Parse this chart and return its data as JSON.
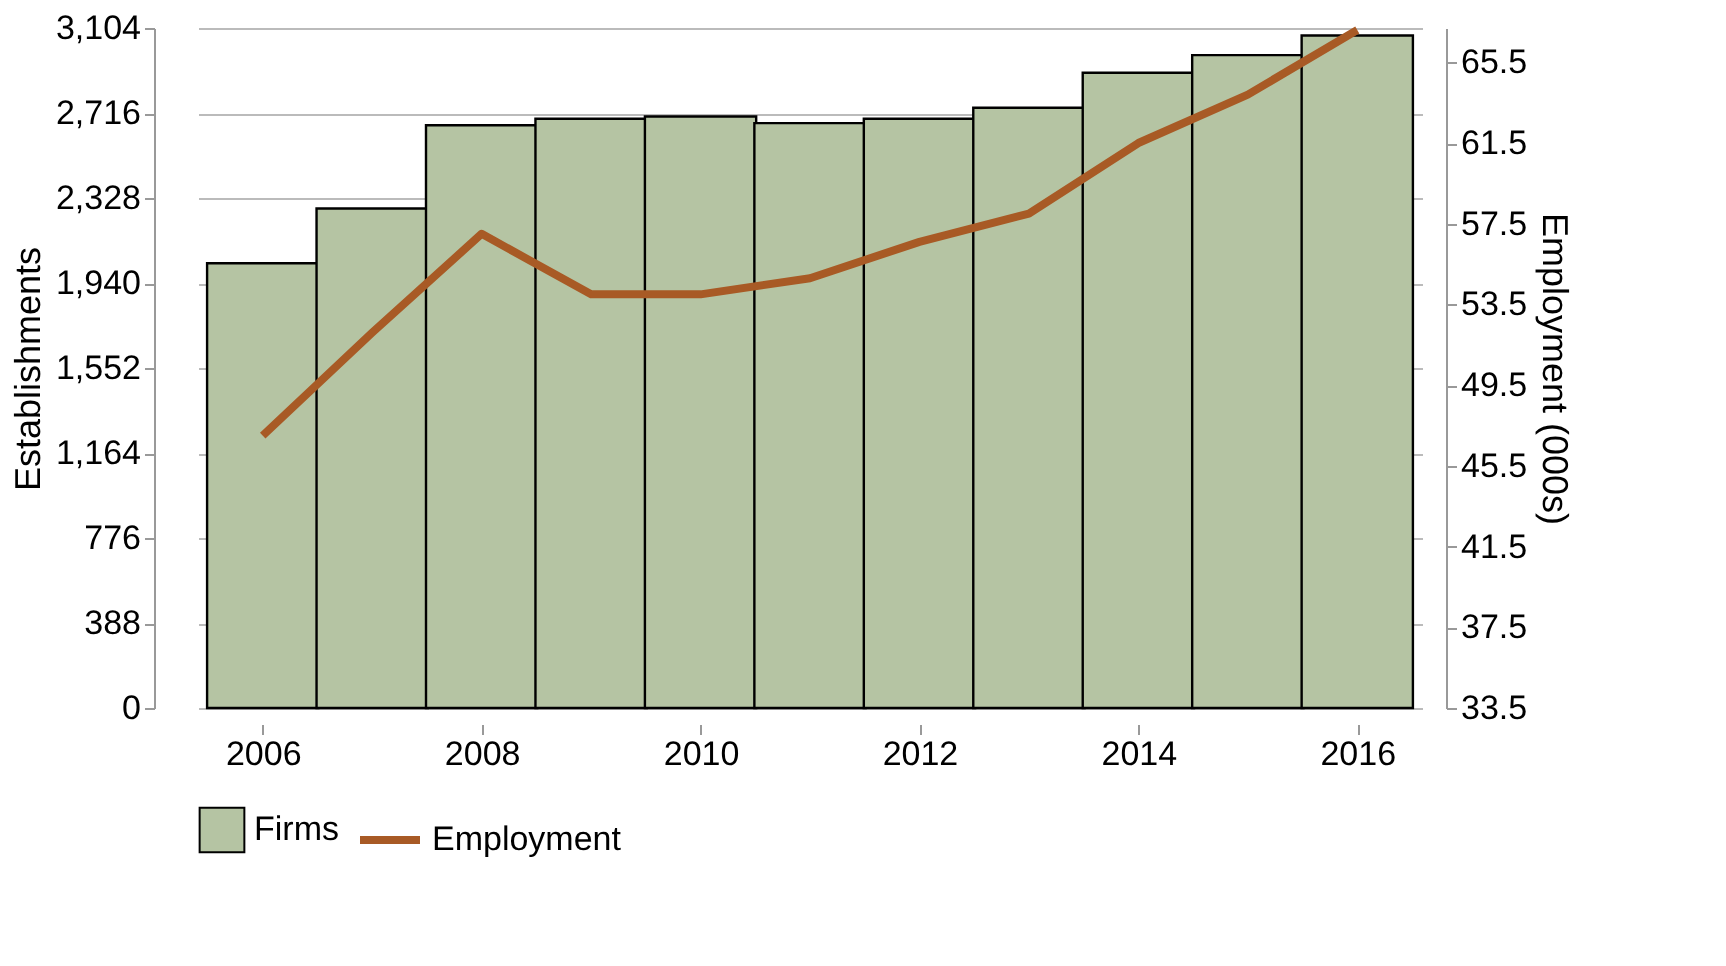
{
  "chart_data": {
    "type": "bar",
    "xlabel": null,
    "ylabel": "Establishments",
    "y2label": "Employment (000s)",
    "x": [
      2006,
      2007,
      2008,
      2009,
      2010,
      2011,
      2012,
      2013,
      2014,
      2015,
      2016
    ],
    "xlim": [
      2005.5,
      2016.5
    ],
    "xticks": [
      2006,
      2008,
      2010,
      2012,
      2014,
      2016
    ],
    "ylim": [
      0,
      3104
    ],
    "yticks": [
      0,
      388,
      776,
      {
        "value": 1164,
        "label": "1,164"
      },
      {
        "value": 1552,
        "label": "1,552"
      },
      {
        "value": 1940,
        "label": "1,940"
      },
      {
        "value": 2328,
        "label": "2,328"
      },
      {
        "value": 2716,
        "label": "2,716"
      },
      {
        "value": 3104,
        "label": "3,104"
      }
    ],
    "y2lim": [
      33.5,
      67.2
    ],
    "y2ticks": [
      33.5,
      37.5,
      41.5,
      45.5,
      49.5,
      53.5,
      57.5,
      61.5,
      65.5
    ],
    "series": [
      {
        "name": "Firms",
        "color": "#b5c4a3",
        "values": [
          2030,
          2280,
          2660,
          2690,
          2700,
          2670,
          2690,
          2740,
          2900,
          2980,
          3070
        ]
      },
      {
        "name": "Employment",
        "type": "line",
        "axis": "y2",
        "color": "#a85a25",
        "values": [
          47.0,
          52.1,
          57.0,
          54.0,
          54.0,
          54.8,
          56.6,
          58.0,
          61.5,
          63.9,
          67.1
        ]
      }
    ],
    "grid": "y",
    "legend": "bottom",
    "marker": "none",
    "line_style": "solid"
  }
}
